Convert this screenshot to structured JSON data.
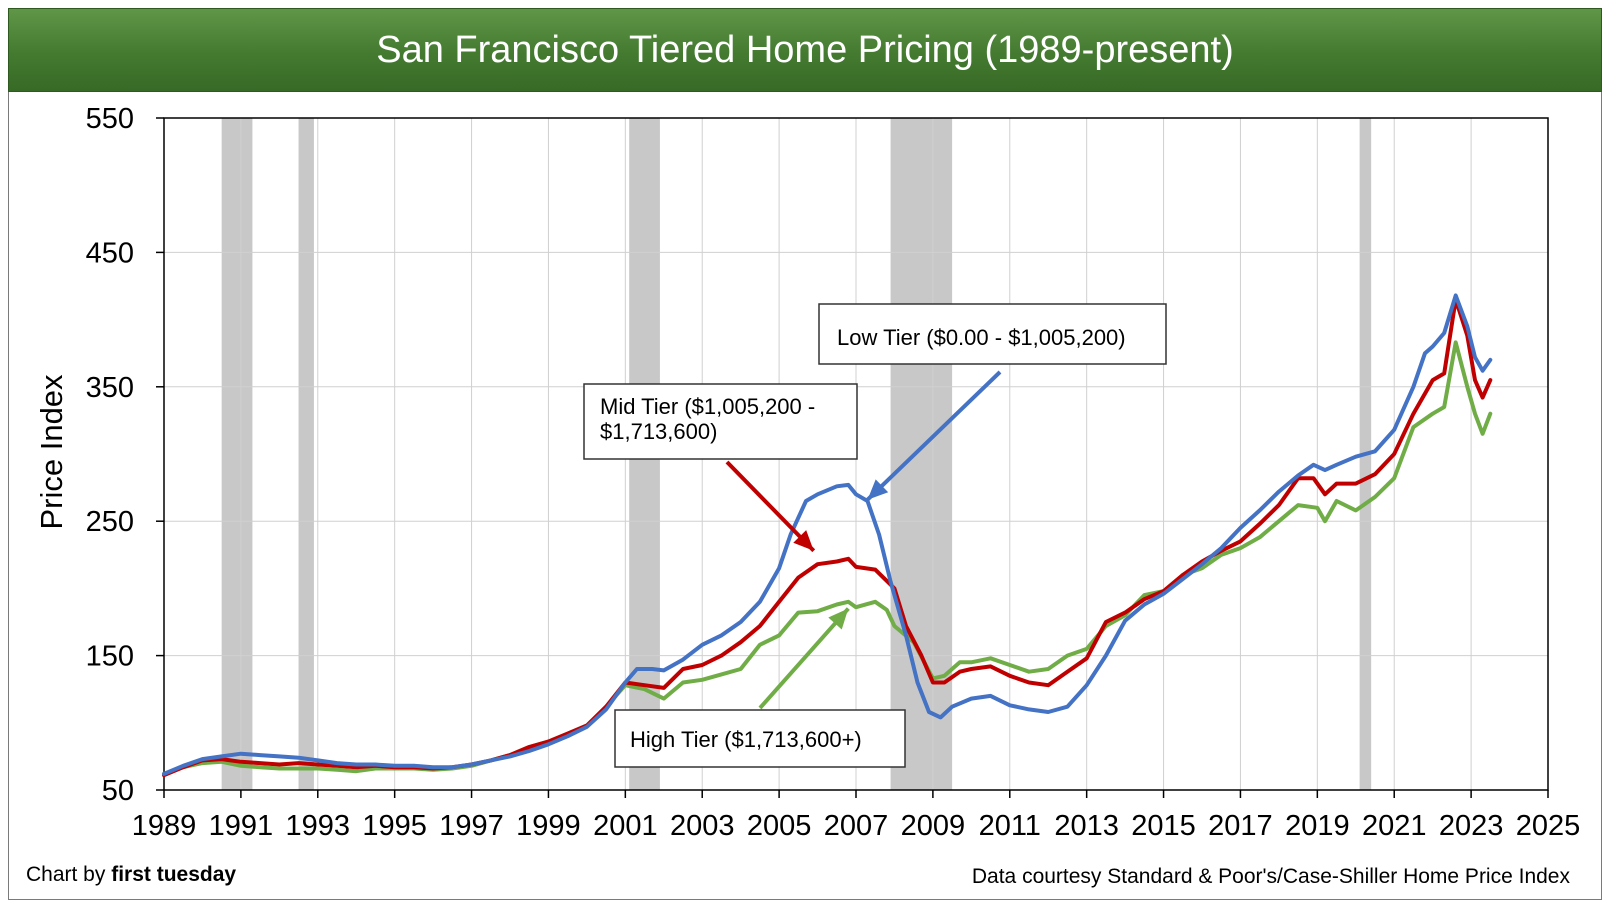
{
  "title": "San Francisco Tiered Home Pricing (1989-present)",
  "footer": {
    "credit_prefix": "Chart by ",
    "credit_brand": "first tuesday",
    "source": "Data courtesy Standard & Poor's/Case-Shiller Home Price Index"
  },
  "colors": {
    "low": "#4472c4",
    "mid": "#c00000",
    "high": "#70ad47",
    "recession": "#c8c8c8",
    "grid": "#d0d0d0"
  },
  "chart_data": {
    "type": "line",
    "title": "San Francisco Tiered Home Pricing (1989-present)",
    "ylabel": "Price Index",
    "xlabel": "",
    "xlim": [
      1989,
      2025
    ],
    "ylim": [
      50,
      550
    ],
    "xticks": [
      "1989",
      "1991",
      "1993",
      "1995",
      "1997",
      "1999",
      "2001",
      "2003",
      "2005",
      "2007",
      "2009",
      "2011",
      "2013",
      "2015",
      "2017",
      "2019",
      "2021",
      "2023",
      "2025"
    ],
    "yticks": [
      "550",
      "450",
      "350",
      "250",
      "150",
      "50"
    ],
    "grid": true,
    "recessions": [
      [
        1990.5,
        1991.3
      ],
      [
        1992.5,
        1992.9
      ],
      [
        2001.1,
        2001.9
      ],
      [
        2007.9,
        2009.5
      ],
      [
        2020.1,
        2020.4
      ]
    ],
    "annotations": {
      "low": {
        "line1": "Low Tier ($0.00 - $1,005,200)",
        "line2": ""
      },
      "mid": {
        "line1": "Mid Tier ($1,005,200 -",
        "line2": "$1,713,600)"
      },
      "high": {
        "line1": "High Tier ($1,713,600+)",
        "line2": ""
      }
    },
    "series": [
      {
        "name": "Low Tier ($0.00 - $1,005,200)",
        "key": "low",
        "points": [
          [
            1989,
            62
          ],
          [
            1989.5,
            68
          ],
          [
            1990,
            73
          ],
          [
            1990.5,
            75
          ],
          [
            1991,
            77
          ],
          [
            1991.5,
            76
          ],
          [
            1992,
            75
          ],
          [
            1992.5,
            74
          ],
          [
            1993,
            72
          ],
          [
            1993.5,
            70
          ],
          [
            1994,
            69
          ],
          [
            1994.5,
            69
          ],
          [
            1995,
            68
          ],
          [
            1995.5,
            68
          ],
          [
            1996,
            67
          ],
          [
            1996.5,
            67
          ],
          [
            1997,
            69
          ],
          [
            1997.5,
            72
          ],
          [
            1998,
            75
          ],
          [
            1998.5,
            79
          ],
          [
            1999,
            84
          ],
          [
            1999.5,
            90
          ],
          [
            2000,
            97
          ],
          [
            2000.5,
            110
          ],
          [
            2001,
            130
          ],
          [
            2001.3,
            140
          ],
          [
            2001.7,
            140
          ],
          [
            2002,
            139
          ],
          [
            2002.5,
            147
          ],
          [
            2003,
            158
          ],
          [
            2003.5,
            165
          ],
          [
            2004,
            175
          ],
          [
            2004.5,
            190
          ],
          [
            2005,
            215
          ],
          [
            2005.3,
            240
          ],
          [
            2005.7,
            265
          ],
          [
            2006,
            270
          ],
          [
            2006.5,
            276
          ],
          [
            2006.8,
            277
          ],
          [
            2007,
            270
          ],
          [
            2007.3,
            265
          ],
          [
            2007.6,
            240
          ],
          [
            2007.9,
            205
          ],
          [
            2008.3,
            165
          ],
          [
            2008.6,
            130
          ],
          [
            2008.9,
            108
          ],
          [
            2009.2,
            104
          ],
          [
            2009.5,
            112
          ],
          [
            2010,
            118
          ],
          [
            2010.5,
            120
          ],
          [
            2011,
            113
          ],
          [
            2011.5,
            110
          ],
          [
            2012,
            108
          ],
          [
            2012.5,
            112
          ],
          [
            2013,
            128
          ],
          [
            2013.5,
            150
          ],
          [
            2014,
            176
          ],
          [
            2014.5,
            188
          ],
          [
            2015,
            196
          ],
          [
            2015.5,
            207
          ],
          [
            2016,
            218
          ],
          [
            2016.5,
            230
          ],
          [
            2017,
            245
          ],
          [
            2017.5,
            258
          ],
          [
            2018,
            272
          ],
          [
            2018.5,
            284
          ],
          [
            2018.9,
            292
          ],
          [
            2019.2,
            288
          ],
          [
            2019.5,
            292
          ],
          [
            2020,
            298
          ],
          [
            2020.5,
            302
          ],
          [
            2021,
            318
          ],
          [
            2021.5,
            350
          ],
          [
            2021.8,
            375
          ],
          [
            2022,
            380
          ],
          [
            2022.3,
            390
          ],
          [
            2022.6,
            418
          ],
          [
            2022.9,
            395
          ],
          [
            2023.1,
            372
          ],
          [
            2023.3,
            362
          ],
          [
            2023.5,
            370
          ]
        ]
      },
      {
        "name": "Mid Tier ($1,005,200 - $1,713,600)",
        "key": "mid",
        "points": [
          [
            1989,
            61
          ],
          [
            1989.5,
            67
          ],
          [
            1990,
            72
          ],
          [
            1990.5,
            73
          ],
          [
            1991,
            71
          ],
          [
            1991.5,
            70
          ],
          [
            1992,
            69
          ],
          [
            1992.5,
            70
          ],
          [
            1993,
            69
          ],
          [
            1993.5,
            68
          ],
          [
            1994,
            67
          ],
          [
            1994.5,
            68
          ],
          [
            1995,
            67
          ],
          [
            1995.5,
            67
          ],
          [
            1996,
            66
          ],
          [
            1996.5,
            67
          ],
          [
            1997,
            69
          ],
          [
            1997.5,
            72
          ],
          [
            1998,
            76
          ],
          [
            1998.5,
            82
          ],
          [
            1999,
            86
          ],
          [
            1999.5,
            92
          ],
          [
            2000,
            98
          ],
          [
            2000.5,
            112
          ],
          [
            2001,
            130
          ],
          [
            2001.5,
            128
          ],
          [
            2002,
            126
          ],
          [
            2002.5,
            140
          ],
          [
            2003,
            143
          ],
          [
            2003.5,
            150
          ],
          [
            2004,
            160
          ],
          [
            2004.5,
            172
          ],
          [
            2005,
            190
          ],
          [
            2005.5,
            208
          ],
          [
            2006,
            218
          ],
          [
            2006.5,
            220
          ],
          [
            2006.8,
            222
          ],
          [
            2007,
            216
          ],
          [
            2007.5,
            214
          ],
          [
            2008,
            200
          ],
          [
            2008.3,
            172
          ],
          [
            2008.7,
            150
          ],
          [
            2009,
            130
          ],
          [
            2009.3,
            130
          ],
          [
            2009.7,
            138
          ],
          [
            2010,
            140
          ],
          [
            2010.5,
            142
          ],
          [
            2011,
            135
          ],
          [
            2011.5,
            130
          ],
          [
            2012,
            128
          ],
          [
            2012.5,
            138
          ],
          [
            2013,
            148
          ],
          [
            2013.5,
            175
          ],
          [
            2014,
            182
          ],
          [
            2014.5,
            192
          ],
          [
            2015,
            198
          ],
          [
            2015.5,
            210
          ],
          [
            2016,
            220
          ],
          [
            2016.5,
            228
          ],
          [
            2017,
            235
          ],
          [
            2017.5,
            248
          ],
          [
            2018,
            262
          ],
          [
            2018.5,
            282
          ],
          [
            2018.9,
            282
          ],
          [
            2019.2,
            270
          ],
          [
            2019.5,
            278
          ],
          [
            2020,
            278
          ],
          [
            2020.5,
            285
          ],
          [
            2021,
            300
          ],
          [
            2021.5,
            330
          ],
          [
            2022,
            355
          ],
          [
            2022.3,
            360
          ],
          [
            2022.6,
            415
          ],
          [
            2022.9,
            388
          ],
          [
            2023.1,
            355
          ],
          [
            2023.3,
            342
          ],
          [
            2023.5,
            355
          ]
        ]
      },
      {
        "name": "High Tier ($1,713,600+)",
        "key": "high",
        "points": [
          [
            1989,
            62
          ],
          [
            1989.5,
            67
          ],
          [
            1990,
            70
          ],
          [
            1990.5,
            71
          ],
          [
            1991,
            68
          ],
          [
            1991.5,
            67
          ],
          [
            1992,
            66
          ],
          [
            1992.5,
            66
          ],
          [
            1993,
            66
          ],
          [
            1993.5,
            65
          ],
          [
            1994,
            64
          ],
          [
            1994.5,
            66
          ],
          [
            1995,
            66
          ],
          [
            1995.5,
            66
          ],
          [
            1996,
            65
          ],
          [
            1996.5,
            66
          ],
          [
            1997,
            68
          ],
          [
            1997.5,
            72
          ],
          [
            1998,
            76
          ],
          [
            1998.5,
            82
          ],
          [
            1999,
            86
          ],
          [
            1999.5,
            92
          ],
          [
            2000,
            98
          ],
          [
            2000.5,
            112
          ],
          [
            2001,
            128
          ],
          [
            2001.5,
            125
          ],
          [
            2002,
            118
          ],
          [
            2002.5,
            130
          ],
          [
            2003,
            132
          ],
          [
            2003.5,
            136
          ],
          [
            2004,
            140
          ],
          [
            2004.5,
            158
          ],
          [
            2005,
            165
          ],
          [
            2005.5,
            182
          ],
          [
            2006,
            183
          ],
          [
            2006.5,
            188
          ],
          [
            2006.8,
            190
          ],
          [
            2007,
            186
          ],
          [
            2007.5,
            190
          ],
          [
            2007.8,
            184
          ],
          [
            2008,
            172
          ],
          [
            2008.5,
            160
          ],
          [
            2009,
            133
          ],
          [
            2009.3,
            135
          ],
          [
            2009.7,
            145
          ],
          [
            2010,
            145
          ],
          [
            2010.5,
            148
          ],
          [
            2011,
            143
          ],
          [
            2011.5,
            138
          ],
          [
            2012,
            140
          ],
          [
            2012.5,
            150
          ],
          [
            2013,
            155
          ],
          [
            2013.5,
            172
          ],
          [
            2014,
            180
          ],
          [
            2014.5,
            195
          ],
          [
            2015,
            198
          ],
          [
            2015.5,
            210
          ],
          [
            2016,
            215
          ],
          [
            2016.5,
            225
          ],
          [
            2017,
            230
          ],
          [
            2017.5,
            238
          ],
          [
            2018,
            250
          ],
          [
            2018.5,
            262
          ],
          [
            2019,
            260
          ],
          [
            2019.2,
            250
          ],
          [
            2019.5,
            265
          ],
          [
            2020,
            258
          ],
          [
            2020.5,
            268
          ],
          [
            2021,
            282
          ],
          [
            2021.5,
            320
          ],
          [
            2022,
            330
          ],
          [
            2022.3,
            335
          ],
          [
            2022.6,
            383
          ],
          [
            2022.9,
            350
          ],
          [
            2023.1,
            330
          ],
          [
            2023.3,
            315
          ],
          [
            2023.5,
            330
          ]
        ]
      }
    ]
  }
}
